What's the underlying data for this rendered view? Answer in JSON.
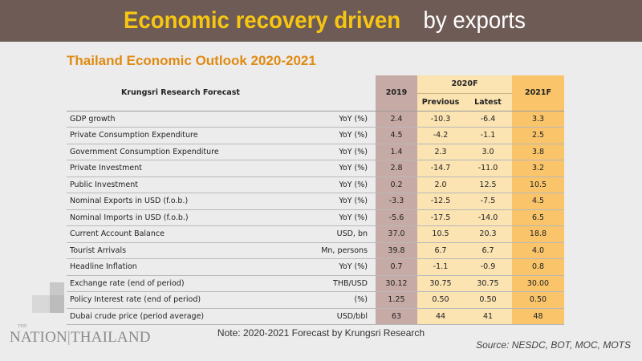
{
  "header": {
    "highlight": "Economic recovery driven",
    "rest": "by exports"
  },
  "subtitle": "Thailand Economic Outlook 2020-2021",
  "table": {
    "head": {
      "label": "Krungsri Research Forecast",
      "y2019": "2019",
      "y2020": "2020F",
      "previous": "Previous",
      "latest": "Latest",
      "y2021": "2021F"
    },
    "rows": [
      {
        "label": "GDP growth",
        "unit": "YoY (%)",
        "v2019": "2.4",
        "prev": "-10.3",
        "latest": "-6.4",
        "v2021": "3.3"
      },
      {
        "label": "Private Consumption Expenditure",
        "unit": "YoY (%)",
        "v2019": "4.5",
        "prev": "-4.2",
        "latest": "-1.1",
        "v2021": "2.5"
      },
      {
        "label": "Government Consumption Expenditure",
        "unit": "YoY (%)",
        "v2019": "1.4",
        "prev": "2.3",
        "latest": "3.0",
        "v2021": "3.8"
      },
      {
        "label": "Private Investment",
        "unit": "YoY (%)",
        "v2019": "2.8",
        "prev": "-14.7",
        "latest": "-11.0",
        "v2021": "3.2"
      },
      {
        "label": "Public Investment",
        "unit": "YoY (%)",
        "v2019": "0.2",
        "prev": "2.0",
        "latest": "12.5",
        "v2021": "10.5"
      },
      {
        "label": "Nominal Exports in USD (f.o.b.)",
        "unit": "YoY (%)",
        "v2019": "-3.3",
        "prev": "-12.5",
        "latest": "-7.5",
        "v2021": "4.5"
      },
      {
        "label": "Nominal Imports in USD (f.o.b.)",
        "unit": "YoY (%)",
        "v2019": "-5.6",
        "prev": "-17.5",
        "latest": "-14.0",
        "v2021": "6.5"
      },
      {
        "label": "Current Account Balance",
        "unit": "USD, bn",
        "v2019": "37.0",
        "prev": "10.5",
        "latest": "20.3",
        "v2021": "18.8"
      },
      {
        "label": "Tourist Arrivals",
        "unit": "Mn, persons",
        "v2019": "39.8",
        "prev": "6.7",
        "latest": "6.7",
        "v2021": "4.0"
      },
      {
        "label": "Headline Inflation",
        "unit": "YoY (%)",
        "v2019": "0.7",
        "prev": "-1.1",
        "latest": "-0.9",
        "v2021": "0.8"
      },
      {
        "label": "Exchange rate (end of period)",
        "unit": "THB/USD",
        "v2019": "30.12",
        "prev": "30.75",
        "latest": "30.75",
        "v2021": "30.00"
      },
      {
        "label": "Policy Interest rate (end of period)",
        "unit": "(%)",
        "v2019": "1.25",
        "prev": "0.50",
        "latest": "0.50",
        "v2021": "0.50"
      },
      {
        "label": "Dubai crude price (period average)",
        "unit": "USD/bbl",
        "v2019": "63",
        "prev": "44",
        "latest": "41",
        "v2021": "48"
      }
    ]
  },
  "note": "Note: 2020-2021 Forecast by Krungsri Research",
  "source": "Source: NESDC, BOT, MOC, MOTS",
  "logo": {
    "small": "THE",
    "left": "NATION",
    "separator": "|",
    "right": "THAILAND"
  }
}
